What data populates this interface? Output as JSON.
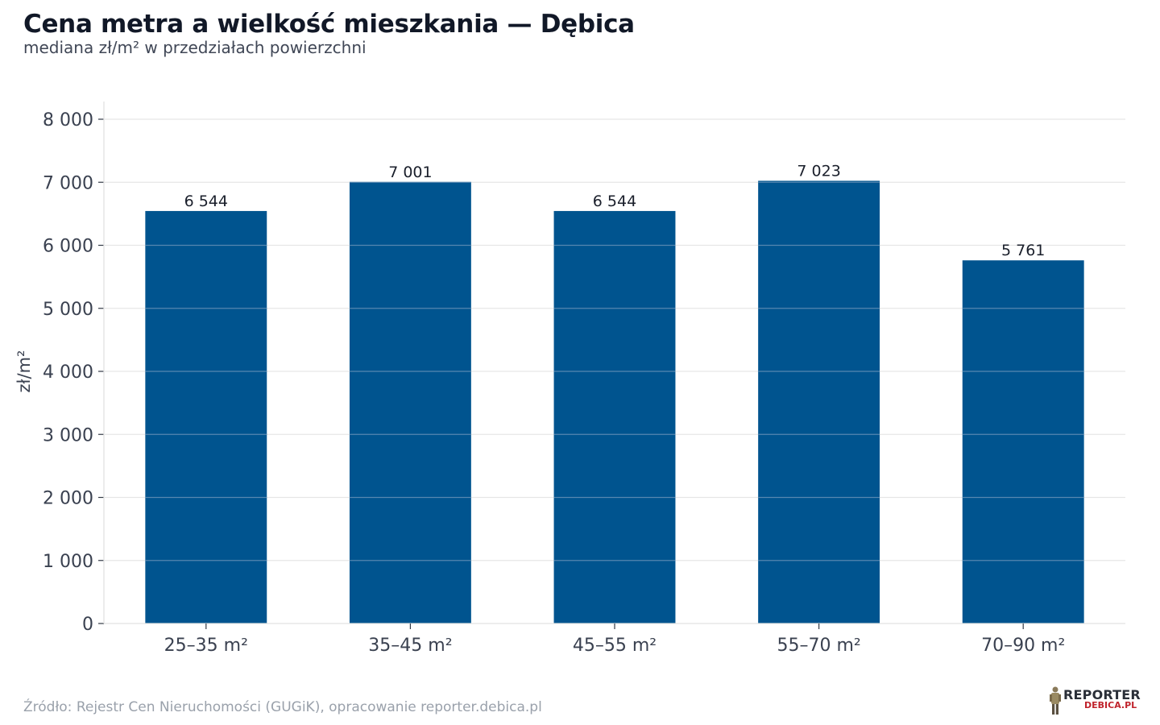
{
  "header": {
    "title": "Cena metra a wielkość mieszkania — Dębica",
    "subtitle": "mediana zł/m² w przedziałach powierzchni"
  },
  "footer": {
    "source": "Źródło: Rejestr Cen Nieruchomości (GUGiK), opracowanie reporter.debica.pl"
  },
  "logo": {
    "main": "REPORTER",
    "sub": "DEBICA.PL",
    "icon": "reporter-figure-icon"
  },
  "chart_data": {
    "type": "bar",
    "categories": [
      "25–35 m²",
      "35–45 m²",
      "45–55 m²",
      "55–70 m²",
      "70–90 m²"
    ],
    "values": [
      6544,
      7001,
      6544,
      7023,
      5761
    ],
    "value_labels": [
      "6 544",
      "7 001",
      "6 544",
      "7 023",
      "5 761"
    ],
    "title": "Cena metra a wielkość mieszkania — Dębica",
    "subtitle": "mediana zł/m² w przedziałach powierzchni",
    "xlabel": "",
    "ylabel": "zł/m²",
    "ylim": [
      0,
      8000
    ],
    "yticks": [
      0,
      1000,
      2000,
      3000,
      4000,
      5000,
      6000,
      7000,
      8000
    ],
    "ytick_labels": [
      "0",
      "1 000",
      "2 000",
      "3 000",
      "4 000",
      "5 000",
      "6 000",
      "7 000",
      "8 000"
    ],
    "grid": true,
    "legend": "none",
    "bar_color": "#00548f",
    "grid_color": "#e6e6e6"
  }
}
